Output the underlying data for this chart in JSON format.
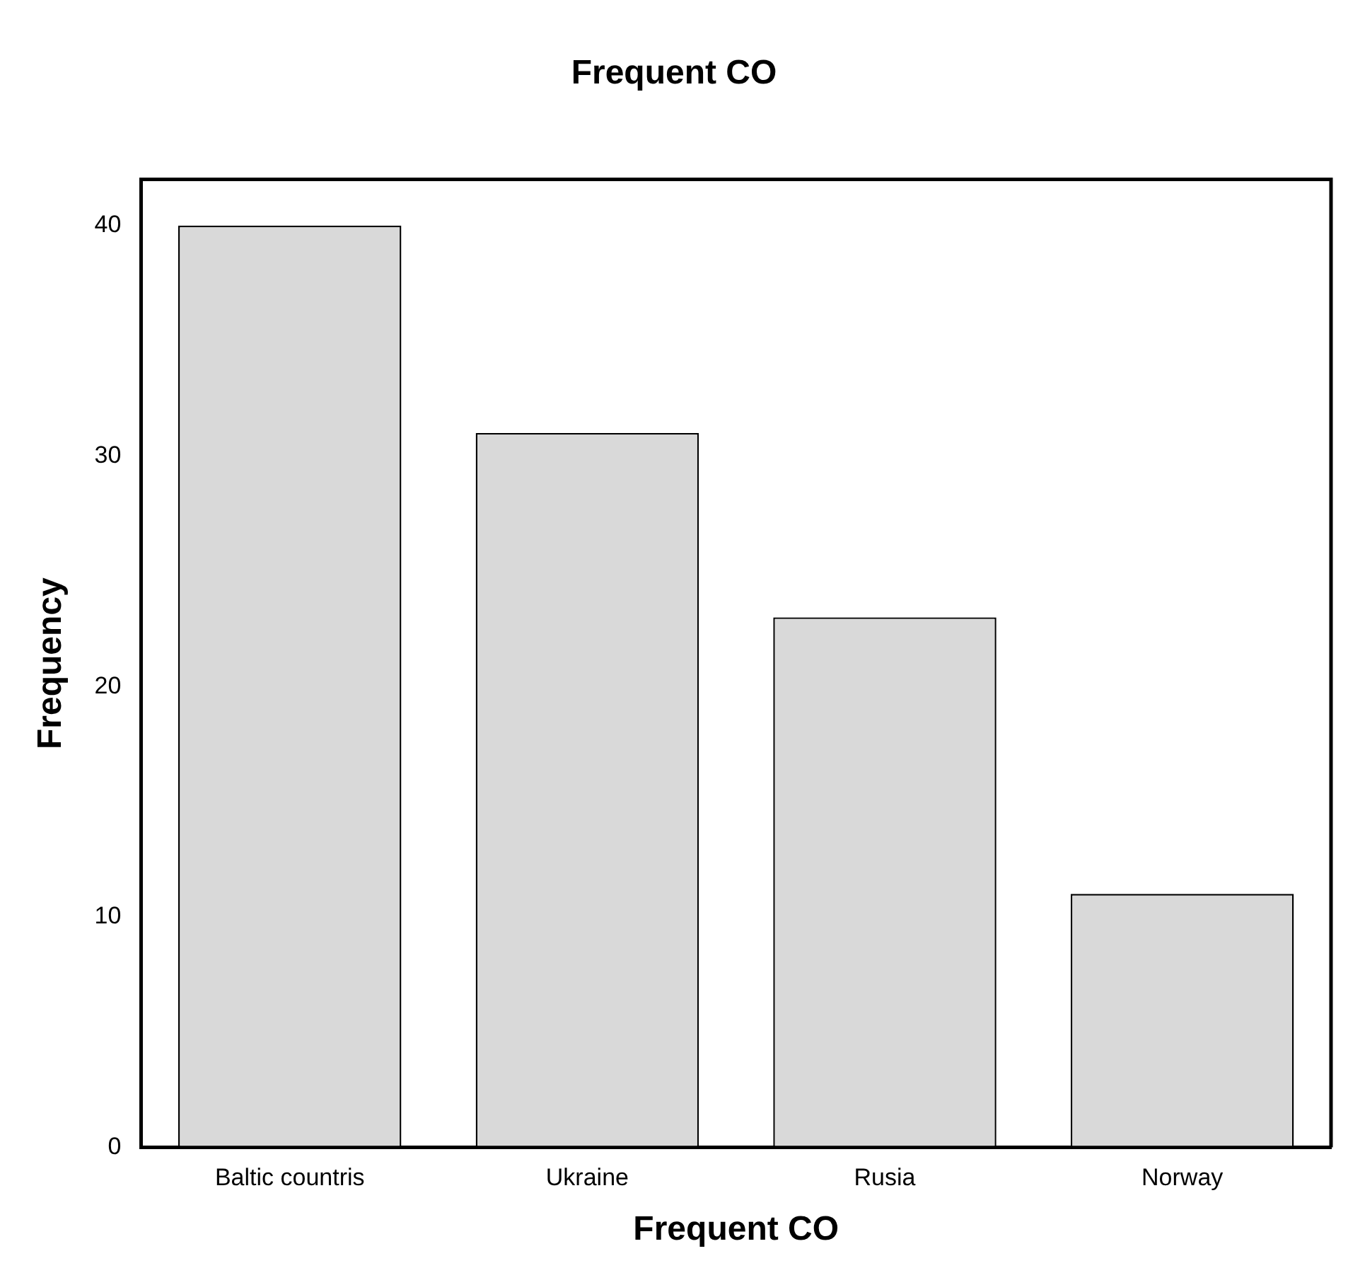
{
  "chart_data": {
    "type": "bar",
    "title": "Frequent CO",
    "xlabel": "Frequent CO",
    "ylabel": "Frequency",
    "categories": [
      "Baltic countris",
      "Ukraine",
      "Rusia",
      "Norway"
    ],
    "values": [
      40,
      31,
      23,
      11
    ],
    "color": "#d9d9d9",
    "ylim": [
      0,
      42
    ],
    "yticks": [
      0,
      10,
      20,
      30,
      40
    ],
    "grid": false,
    "legend": false
  }
}
